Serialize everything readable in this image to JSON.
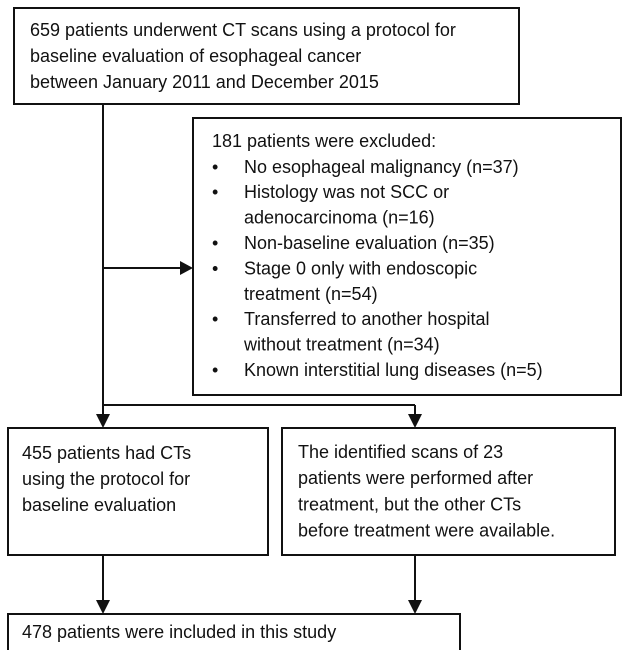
{
  "nodes": [
    {
      "lines": [
        "659 patients underwent CT scans using a protocol for",
        "baseline evaluation of esophageal cancer",
        "between January 2011 and December 2015"
      ]
    },
    {
      "title": "181 patients were excluded:",
      "items": [
        [
          "No esophageal malignancy (n=37)"
        ],
        [
          "Histology was not SCC or",
          "adenocarcinoma (n=16)"
        ],
        [
          "Non-baseline evaluation (n=35)"
        ],
        [
          "Stage 0 only with endoscopic",
          "treatment (n=54)"
        ],
        [
          "Transferred to another hospital",
          "without treatment (n=34)"
        ],
        [
          "Known interstitial lung diseases (n=5)"
        ]
      ]
    },
    {
      "lines": [
        "455 patients had CTs",
        "using the protocol for",
        "baseline evaluation"
      ]
    },
    {
      "lines": [
        "The identified scans of 23",
        "patients were performed after",
        "treatment, but the other CTs",
        "before treatment were available."
      ]
    },
    {
      "lines": [
        "478 patients were included in this study"
      ]
    }
  ]
}
